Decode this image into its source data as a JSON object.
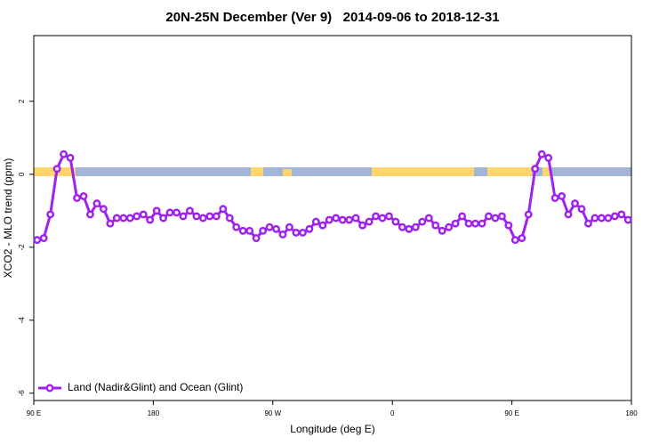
{
  "chart_data": {
    "type": "line",
    "title": "20N-25N December (Ver 9)   2014-09-06 to 2018-12-31",
    "x_label": "Longitude (deg E)",
    "y_label": "XCO2 - MLO trend (ppm)",
    "x": [
      92.5,
      97.5,
      102.5,
      107.5,
      112.5,
      117.5,
      122.5,
      127.5,
      132.5,
      137.5,
      142.5,
      147.5,
      152.5,
      157.5,
      162.5,
      167.5,
      172.5,
      177.5,
      182.5,
      187.5,
      192.5,
      197.5,
      202.5,
      207.5,
      212.5,
      217.5,
      222.5,
      227.5,
      232.5,
      237.5,
      242.5,
      247.5,
      252.5,
      257.5,
      262.5,
      267.5,
      272.5,
      277.5,
      282.5,
      287.5,
      292.5,
      297.5,
      302.5,
      307.5,
      312.5,
      317.5,
      322.5,
      327.5,
      332.5,
      337.5,
      342.5,
      347.5,
      352.5,
      357.5,
      362.5,
      367.5,
      372.5,
      377.5,
      382.5,
      387.5,
      392.5,
      397.5,
      402.5,
      407.5,
      412.5,
      417.5,
      422.5,
      427.5,
      432.5,
      437.5,
      442.5,
      447.5,
      452.5,
      457.5,
      462.5,
      467.5,
      472.5,
      477.5,
      482.5,
      487.5,
      492.5,
      497.5,
      502.5,
      507.5,
      512.5,
      517.5,
      522.5,
      527.5,
      532.5,
      537.5
    ],
    "series": [
      {
        "name": "Land (Nadir&Glint) and Ocean (Glint)",
        "color": "#a020f0",
        "values": [
          -1.8,
          -1.75,
          -1.1,
          0.15,
          0.55,
          0.45,
          -0.65,
          -0.6,
          -1.1,
          -0.8,
          -0.95,
          -1.35,
          -1.2,
          -1.2,
          -1.2,
          -1.15,
          -1.1,
          -1.25,
          -1.0,
          -1.2,
          -1.05,
          -1.05,
          -1.15,
          -1.0,
          -1.15,
          -1.2,
          -1.15,
          -1.15,
          -0.95,
          -1.2,
          -1.45,
          -1.55,
          -1.55,
          -1.75,
          -1.55,
          -1.45,
          -1.5,
          -1.65,
          -1.45,
          -1.6,
          -1.6,
          -1.5,
          -1.3,
          -1.4,
          -1.25,
          -1.2,
          -1.25,
          -1.25,
          -1.2,
          -1.4,
          -1.3,
          -1.15,
          -1.2,
          -1.15,
          -1.3,
          -1.45,
          -1.5,
          -1.45,
          -1.3,
          -1.2,
          -1.4,
          -1.55,
          -1.45,
          -1.35,
          -1.15,
          -1.35,
          -1.35,
          -1.35,
          -1.15,
          -1.2,
          -1.15,
          -1.4,
          -1.8,
          -1.75,
          -1.1,
          0.15,
          0.55,
          0.45,
          -0.65,
          -0.6,
          -1.1,
          -0.8,
          -0.95,
          -1.35,
          -1.2,
          -1.2,
          -1.2,
          -1.15,
          -1.1,
          -1.25
        ]
      }
    ],
    "xlim": [
      90,
      540
    ],
    "xticks": [
      {
        "value": 90,
        "label": "90 E"
      },
      180,
      {
        "value": 270,
        "label": "90 W"
      },
      {
        "value": 360,
        "label": "0"
      },
      {
        "value": 450,
        "label": "90 E"
      },
      {
        "value": 540,
        "label": "180"
      }
    ],
    "ylim": [
      -6.2,
      3.8
    ],
    "yticks": [
      2,
      0,
      -2,
      -4,
      -6
    ],
    "legend": "bottom-left"
  }
}
